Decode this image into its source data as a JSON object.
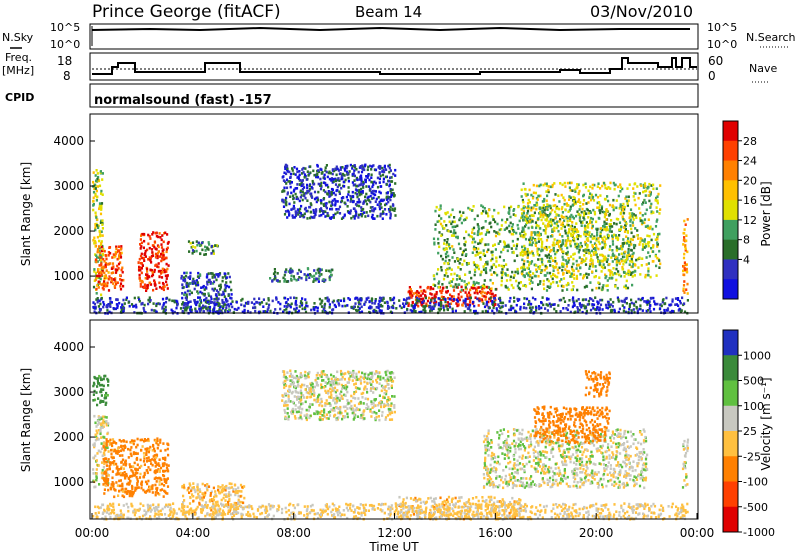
{
  "header": {
    "station": "Prince George (fitACF)",
    "beam": "Beam 14",
    "date": "03/Nov/2010"
  },
  "top_panels": {
    "nsky_label": "N.Sky",
    "nsearch_label": "N.Search",
    "nsky_ticks": [
      "10^5",
      "10^0"
    ],
    "nsearch_ticks": [
      "10^5",
      "10^0"
    ],
    "freq_label_1": "Freq.",
    "freq_label_2": "[MHz]",
    "freq_ticks": [
      "18",
      "8"
    ],
    "nave_label": "Nave",
    "nave_ticks": [
      "60",
      "0"
    ],
    "cpid_label": "CPID",
    "cpid_text": "normalsound (fast) -157"
  },
  "colorbars": {
    "power": {
      "label": "Power [dB]",
      "ticks": [
        "28",
        "24",
        "20",
        "16",
        "12",
        "8",
        "4"
      ],
      "colors": [
        "#e00000",
        "#ff4000",
        "#ff8000",
        "#ffc000",
        "#e0e000",
        "#40a060",
        "#2a6e2a",
        "#3030c0",
        "#1010e0"
      ]
    },
    "velocity": {
      "label": "Velocity [m s⁻¹]",
      "ticks": [
        "1000",
        "500",
        "100",
        "25",
        "-25",
        "-100",
        "-500",
        "-1000"
      ],
      "colors": [
        "#2030c0",
        "#3a8a3a",
        "#60c040",
        "#c8c8c0",
        "#ffc040",
        "#ff8000",
        "#ff4000",
        "#e00000"
      ]
    }
  },
  "axes": {
    "ylabel": "Slant Range [km]",
    "y_ticks": [
      "4000",
      "3000",
      "2000",
      "1000"
    ],
    "xlabel": "Time UT",
    "x_ticks": [
      "00:00",
      "04:00",
      "08:00",
      "12:00",
      "16:00",
      "20:00",
      "00:00"
    ]
  },
  "chart_data": [
    {
      "type": "heatmap",
      "title": "",
      "quantity": "Power",
      "units": "dB",
      "xlabel": "Time UT",
      "ylabel": "Slant Range [km]",
      "xlim": [
        "00:00",
        "24:00"
      ],
      "ylim": [
        180,
        4600
      ],
      "clim": [
        0,
        30
      ],
      "regions": [
        {
          "t": [
            0.0,
            0.4
          ],
          "r": [
            600,
            3400
          ],
          "v": 14
        },
        {
          "t": [
            0.1,
            1.2
          ],
          "r": [
            700,
            1700
          ],
          "v": 24
        },
        {
          "t": [
            1.8,
            3.0
          ],
          "r": [
            700,
            2000
          ],
          "v": 27
        },
        {
          "t": [
            3.8,
            5.0
          ],
          "r": [
            1500,
            1800
          ],
          "v": 10
        },
        {
          "t": [
            3.5,
            5.5
          ],
          "r": [
            200,
            1100
          ],
          "v": 6
        },
        {
          "t": [
            7.0,
            9.5
          ],
          "r": [
            900,
            1200
          ],
          "v": 8
        },
        {
          "t": [
            7.5,
            12.0
          ],
          "r": [
            2300,
            3500
          ],
          "v": 5
        },
        {
          "t": [
            12.5,
            16.0
          ],
          "r": [
            350,
            800
          ],
          "v": 27
        },
        {
          "t": [
            13.5,
            21.5
          ],
          "r": [
            700,
            2600
          ],
          "v": 12
        },
        {
          "t": [
            17.0,
            22.5
          ],
          "r": [
            1000,
            3100
          ],
          "v": 14
        },
        {
          "t": [
            23.4,
            23.6
          ],
          "r": [
            600,
            2300
          ],
          "v": 22
        },
        {
          "t": [
            0.0,
            23.6
          ],
          "r": [
            200,
            550
          ],
          "v": 5
        }
      ]
    },
    {
      "type": "heatmap",
      "title": "",
      "quantity": "Velocity",
      "units": "m s-1",
      "xlabel": "Time UT",
      "ylabel": "Slant Range [km]",
      "xlim": [
        "00:00",
        "24:00"
      ],
      "ylim": [
        180,
        4600
      ],
      "clim": [
        -1000,
        1000
      ],
      "regions": [
        {
          "t": [
            0.0,
            0.6
          ],
          "r": [
            2700,
            3400
          ],
          "v": 150
        },
        {
          "t": [
            0.0,
            0.6
          ],
          "r": [
            900,
            2500
          ],
          "v": 0
        },
        {
          "t": [
            0.4,
            3.0
          ],
          "r": [
            700,
            2000
          ],
          "v": -150
        },
        {
          "t": [
            3.5,
            6.0
          ],
          "r": [
            300,
            1000
          ],
          "v": -60
        },
        {
          "t": [
            7.5,
            12.0
          ],
          "r": [
            2400,
            3500
          ],
          "v": 0
        },
        {
          "t": [
            12.0,
            17.0
          ],
          "r": [
            200,
            700
          ],
          "v": -50
        },
        {
          "t": [
            15.5,
            22.0
          ],
          "r": [
            900,
            2200
          ],
          "v": 0
        },
        {
          "t": [
            17.5,
            20.5
          ],
          "r": [
            1900,
            2700
          ],
          "v": -200
        },
        {
          "t": [
            19.5,
            20.5
          ],
          "r": [
            2900,
            3500
          ],
          "v": -300
        },
        {
          "t": [
            23.4,
            23.6
          ],
          "r": [
            900,
            2000
          ],
          "v": 0
        },
        {
          "t": [
            0.0,
            23.6
          ],
          "r": [
            200,
            550
          ],
          "v": -40
        }
      ]
    }
  ]
}
